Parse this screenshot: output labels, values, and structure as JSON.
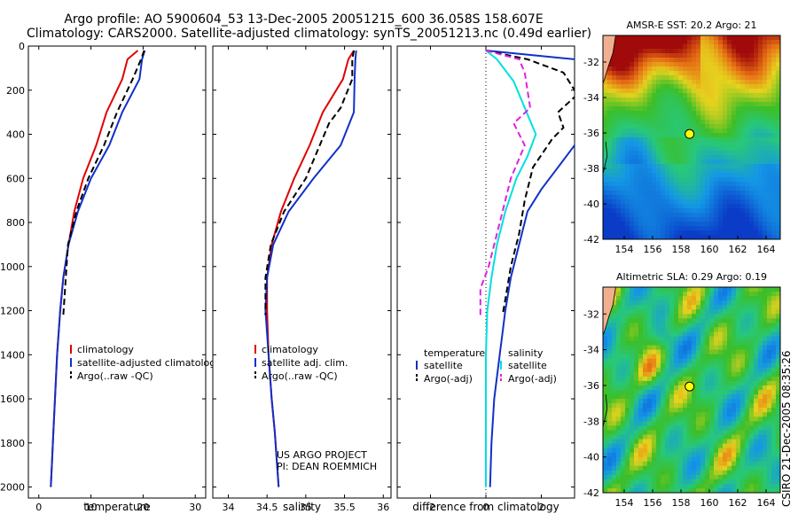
{
  "header": {
    "line1": "Argo profile: AO 5900604_53 13-Dec-2005 20051215_600 36.058S 158.607E",
    "line2": "Climatology: CARS2000. Satellite-adjusted climatology: synTS_20051213.nc (0.49d earlier)"
  },
  "side_label": "CSIRO 21-Dec-2005 08:35:26",
  "credits": [
    "US ARGO PROJECT",
    "PI: DEAN ROEMMICH"
  ],
  "colors": {
    "climatology": "#e00000",
    "satellite": "#1030c8",
    "argo": "#000000",
    "salinity_sat": "#00e0e0",
    "salinity_argo": "#e020e0"
  },
  "chart_data": [
    {
      "type": "line",
      "id": "temperature_profile",
      "xlabel": "temperature",
      "ylabel": "",
      "xlim": [
        -2,
        32
      ],
      "ylim": [
        2050,
        0
      ],
      "y_reversed": true,
      "xticks": [
        0,
        10,
        20,
        30
      ],
      "yticks": [
        0,
        200,
        400,
        600,
        800,
        1000,
        1200,
        1400,
        1600,
        1800,
        2000
      ],
      "legend": "bottom-right",
      "series": [
        {
          "name": "climatology",
          "color": "#e00000",
          "style": "solid",
          "x": [
            19,
            17,
            16,
            13,
            11,
            8.5,
            6.8,
            5.7,
            4.7,
            4.1,
            3.5,
            3.1,
            2.8,
            2.5,
            2.3
          ],
          "y": [
            20,
            60,
            150,
            300,
            450,
            600,
            750,
            900,
            1050,
            1200,
            1400,
            1600,
            1750,
            1900,
            2000
          ]
        },
        {
          "name": "satellite-adjusted climatology",
          "color": "#1030c8",
          "style": "solid",
          "x": [
            20.3,
            19.8,
            19.3,
            16,
            13.5,
            10,
            7.5,
            5.7,
            4.7,
            4.1,
            3.5,
            3.1,
            2.8,
            2.5,
            2.3
          ],
          "y": [
            20,
            60,
            150,
            300,
            450,
            600,
            750,
            900,
            1050,
            1200,
            1400,
            1600,
            1750,
            1900,
            2000
          ]
        },
        {
          "name": "Argo(..raw -QC)",
          "color": "#000000",
          "style": "dashed",
          "x": [
            20.2,
            19.6,
            18,
            15,
            12.5,
            9.5,
            7.2,
            5.6,
            4.7
          ],
          "y": [
            20,
            60,
            150,
            300,
            450,
            600,
            750,
            900,
            1220
          ]
        }
      ]
    },
    {
      "type": "line",
      "id": "salinity_profile",
      "xlabel": "salinity",
      "ylabel": "",
      "xlim": [
        33.8,
        36.1
      ],
      "ylim": [
        2050,
        0
      ],
      "y_reversed": true,
      "xticks": [
        34,
        34.5,
        35,
        35.5,
        36
      ],
      "yticks": [],
      "legend": "bottom-right",
      "series": [
        {
          "name": "climatology",
          "color": "#e00000",
          "style": "solid",
          "x": [
            35.62,
            35.55,
            35.48,
            35.22,
            35.05,
            34.85,
            34.68,
            34.56,
            34.5,
            34.5,
            34.52,
            34.56,
            34.6,
            34.63,
            34.65
          ],
          "y": [
            20,
            60,
            150,
            300,
            450,
            600,
            750,
            900,
            1050,
            1200,
            1400,
            1600,
            1750,
            1900,
            2000
          ]
        },
        {
          "name": "satellite adj. clim.",
          "color": "#1030c8",
          "style": "solid",
          "x": [
            35.65,
            35.64,
            35.63,
            35.62,
            35.45,
            35.1,
            34.78,
            34.58,
            34.5,
            34.48,
            34.52,
            34.56,
            34.6,
            34.63,
            34.65
          ],
          "y": [
            20,
            60,
            150,
            300,
            450,
            600,
            750,
            900,
            1050,
            1200,
            1400,
            1600,
            1750,
            1900,
            2000
          ]
        },
        {
          "name": "Argo(..raw -QC)",
          "color": "#000000",
          "style": "dashed",
          "x": [
            35.62,
            35.6,
            35.6,
            35.45,
            35.3,
            35.0,
            34.72,
            34.55,
            34.48,
            34.48
          ],
          "y": [
            20,
            60,
            150,
            280,
            350,
            600,
            750,
            900,
            1050,
            1220
          ]
        }
      ]
    },
    {
      "type": "line",
      "id": "difference_profile",
      "xlabel": "difference from climatology",
      "ylabel": "",
      "xlim": [
        -3.2,
        3.2
      ],
      "ylim": [
        2050,
        0
      ],
      "y_reversed": true,
      "xticks": [
        -2,
        0,
        2
      ],
      "yticks": [],
      "legend": "bottom",
      "legend_groups": [
        {
          "title": "temperature",
          "items": [
            "satellite",
            "Argo(-adj)"
          ]
        },
        {
          "title": "salinity",
          "items": [
            "satellite",
            "Argo(-adj)"
          ]
        }
      ],
      "series": [
        {
          "name": "temperature satellite",
          "color": "#1030c8",
          "style": "solid",
          "x": [
            0,
            3.2,
            3.6,
            3.8,
            3.2,
            2.6,
            2.0,
            1.5,
            1.3,
            1.1,
            0.9,
            0.7,
            0.5,
            0.3,
            0.2,
            0.15
          ],
          "y": [
            20,
            60,
            120,
            200,
            450,
            550,
            650,
            750,
            850,
            950,
            1050,
            1200,
            1400,
            1600,
            1800,
            2000
          ]
        },
        {
          "name": "temperature Argo(-adj)",
          "color": "#000000",
          "style": "dashed",
          "x": [
            0,
            1.5,
            2.8,
            3.3,
            2.6,
            2.8,
            2.4,
            1.7,
            1.4,
            1.2,
            0.9,
            0.7,
            0.6
          ],
          "y": [
            20,
            60,
            120,
            220,
            300,
            370,
            420,
            550,
            700,
            850,
            1000,
            1150,
            1220
          ]
        },
        {
          "name": "salinity satellite",
          "color": "#00e0e0",
          "style": "solid",
          "x": [
            0,
            0.4,
            1.0,
            1.8,
            1.5,
            1.1,
            0.7,
            0.4,
            0.2,
            0.05,
            0,
            0,
            0
          ],
          "y": [
            20,
            60,
            160,
            400,
            500,
            600,
            750,
            900,
            1050,
            1200,
            1400,
            1700,
            2000
          ]
        },
        {
          "name": "salinity Argo(-adj)",
          "color": "#e020e0",
          "style": "dashed",
          "x": [
            0,
            1.2,
            1.4,
            1.6,
            1.0,
            1.4,
            0.9,
            0.6,
            0.3,
            0.1,
            -0.2,
            -0.2
          ],
          "y": [
            20,
            60,
            120,
            280,
            350,
            450,
            600,
            750,
            900,
            1000,
            1100,
            1220
          ]
        }
      ]
    },
    {
      "type": "heatmap",
      "id": "sst_map",
      "title": "AMSR-E SST: 20.2 Argo: 21",
      "xlim": [
        152.5,
        165
      ],
      "ylim": [
        -42,
        -30.5
      ],
      "xticks": [
        154,
        156,
        158,
        160,
        162,
        164
      ],
      "yticks": [
        -32,
        -34,
        -36,
        -38,
        -40,
        -42
      ],
      "marker": {
        "lon": 158.607,
        "lat": -36.058
      },
      "sst_value": 20.2,
      "argo_value": 21
    },
    {
      "type": "heatmap",
      "id": "sla_map",
      "title": "Altimetric SLA: 0.29 Argo: 0.19",
      "xlim": [
        152.5,
        165
      ],
      "ylim": [
        -42,
        -30.5
      ],
      "xticks": [
        154,
        156,
        158,
        160,
        162,
        164
      ],
      "yticks": [
        -32,
        -34,
        -36,
        -38,
        -40,
        -42
      ],
      "marker": {
        "lon": 158.607,
        "lat": -36.058
      },
      "sla_value": 0.29,
      "argo_value": 0.19
    }
  ]
}
